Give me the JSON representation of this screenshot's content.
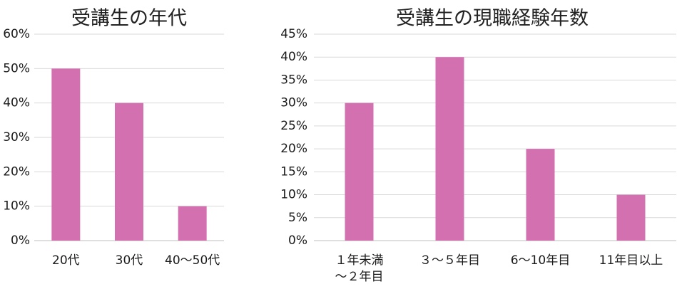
{
  "colors": {
    "bar": "#d370b0",
    "grid": "#d9d9d9",
    "text": "#1a1a1a"
  },
  "chart_data": [
    {
      "type": "bar",
      "title": "受講生の年代",
      "categories": [
        "20代",
        "30代",
        "40〜50代"
      ],
      "values": [
        50,
        40,
        10
      ],
      "value_unit": "%",
      "ylim": [
        0,
        60
      ],
      "yticks": [
        0,
        10,
        20,
        30,
        40,
        50,
        60
      ],
      "ytick_labels": [
        "0%",
        "10%",
        "20%",
        "30%",
        "40%",
        "50%",
        "60%"
      ],
      "grid": true,
      "legend": "none"
    },
    {
      "type": "bar",
      "title": "受講生の現職経験年数",
      "categories": [
        [
          "１年未満",
          "〜２年目"
        ],
        [
          "３〜５年目"
        ],
        [
          "6〜10年目"
        ],
        [
          "11年目以上"
        ]
      ],
      "values": [
        30,
        40,
        20,
        10
      ],
      "value_unit": "%",
      "ylim": [
        0,
        45
      ],
      "yticks": [
        0,
        5,
        10,
        15,
        20,
        25,
        30,
        35,
        40,
        45
      ],
      "ytick_labels": [
        "0%",
        "5%",
        "10%",
        "15%",
        "20%",
        "25%",
        "30%",
        "35%",
        "40%",
        "45%"
      ],
      "grid": true,
      "legend": "none"
    }
  ]
}
